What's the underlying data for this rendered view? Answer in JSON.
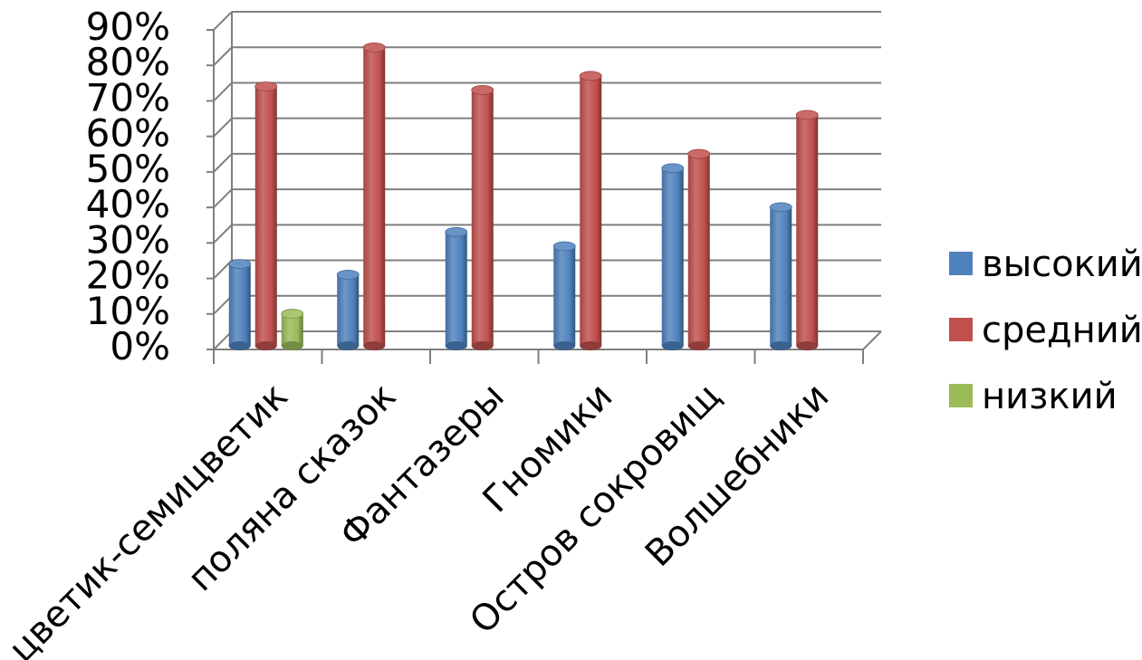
{
  "chart_data": {
    "type": "bar",
    "title": "",
    "xlabel": "",
    "ylabel": "",
    "ylim": [
      0,
      90
    ],
    "y_unit": "%",
    "grid": true,
    "legend_position": "right",
    "style": "3d-cylinder",
    "yticks": [
      "0%",
      "10%",
      "20%",
      "30%",
      "40%",
      "50%",
      "60%",
      "70%",
      "80%",
      "90%"
    ],
    "categories": [
      "цветик-семицветик",
      "поляна сказок",
      "Фантазеры",
      "Гномики",
      "Остров сокровищ",
      "Волшебники"
    ],
    "series": [
      {
        "name": "высокий",
        "color": "#4f81bd",
        "values": [
          21,
          18,
          30,
          26,
          48,
          37
        ]
      },
      {
        "name": "средний",
        "color": "#c0504d",
        "values": [
          71,
          82,
          70,
          74,
          52,
          63
        ]
      },
      {
        "name": "низкий",
        "color": "#9bbb59",
        "values": [
          7,
          null,
          null,
          null,
          null,
          null
        ]
      }
    ]
  }
}
